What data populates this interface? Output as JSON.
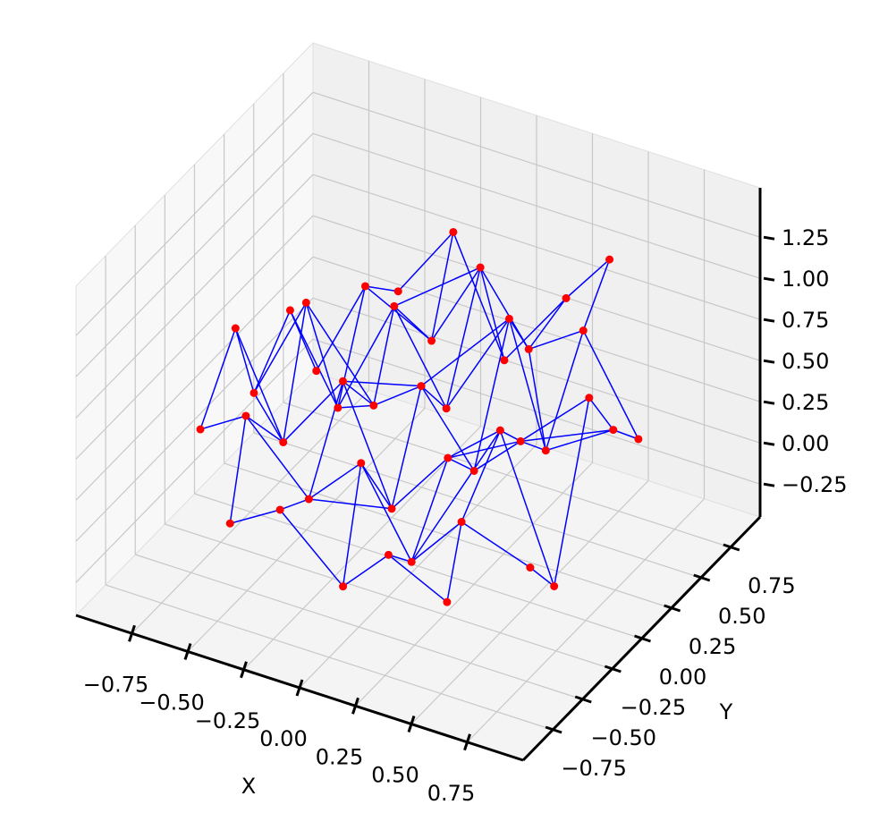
{
  "chart_data": {
    "type": "network3d",
    "xlabel": "X",
    "ylabel": "Y",
    "xlim": [
      -1.0,
      1.0
    ],
    "ylim": [
      -1.0,
      1.0
    ],
    "zlim": [
      -0.45,
      1.55
    ],
    "xticks": [
      {
        "value": -0.75,
        "label": "−0.75"
      },
      {
        "value": -0.5,
        "label": "−0.50"
      },
      {
        "value": -0.25,
        "label": "−0.25"
      },
      {
        "value": 0,
        "label": "0.00"
      },
      0.25,
      {
        "value": 0.5,
        "label": "0.50"
      },
      0.75
    ],
    "yticks": [
      {
        "value": -0.75,
        "label": "−0.75"
      },
      {
        "value": -0.5,
        "label": "−0.50"
      },
      {
        "value": -0.25,
        "label": "−0.25"
      },
      {
        "value": 0,
        "label": "0.00"
      },
      0.25,
      {
        "value": 0.5,
        "label": "0.50"
      },
      0.75
    ],
    "zticks": [
      {
        "value": -0.25,
        "label": "−0.25"
      },
      {
        "value": 0,
        "label": "0.00"
      },
      0.25,
      {
        "value": 0.5,
        "label": "0.50"
      },
      0.75,
      {
        "value": 1,
        "label": "1.00"
      },
      1.25
    ],
    "grid": true,
    "node_color": "#ff0000",
    "edge_color": "#0000ff",
    "x": [
      -0.47,
      -0.22,
      0.03,
      0.26,
      0.49,
      -0.73,
      -0.5,
      -0.25,
      0.01,
      0.22,
      0.47,
      0.74,
      -0.7,
      -0.46,
      -0.23,
      0.02,
      0.25,
      0.5,
      0.72,
      -0.75,
      -0.49,
      -0.22,
      0.03,
      0.24,
      0.48,
      0.76,
      -0.71,
      -0.47,
      -0.25,
      0.01,
      0.27,
      0.46,
      0.73,
      -0.72,
      -0.48,
      -0.21,
      0.04,
      0.23,
      0.49,
      0.71,
      -0.46,
      -0.24,
      0.02,
      0.27,
      0.48
    ],
    "y": [
      -0.7,
      -0.75,
      -0.69,
      -0.74,
      -0.68,
      -0.46,
      -0.51,
      -0.45,
      -0.5,
      -0.47,
      -0.52,
      -0.45,
      -0.22,
      -0.27,
      -0.2,
      -0.26,
      -0.22,
      -0.25,
      -0.21,
      0.03,
      -0.02,
      0.04,
      -0.03,
      0.02,
      -0.04,
      0.01,
      0.26,
      0.21,
      0.27,
      0.22,
      0.26,
      0.21,
      0.27,
      0.5,
      0.46,
      0.51,
      0.45,
      0.5,
      0.47,
      0.52,
      0.7,
      0.75,
      0.69,
      0.74,
      0.71
    ],
    "z": [
      0.12,
      0.35,
      -0.05,
      0.28,
      0.05,
      0.4,
      0.62,
      0.18,
      0.55,
      0.02,
      0.41,
      0.2,
      0.85,
      0.3,
      0.72,
      0.1,
      0.48,
      0.78,
      -0.1,
      0.25,
      0.95,
      0.4,
      0.68,
      0.22,
      0.55,
      0.9,
      0.6,
      0.15,
      0.82,
      0.35,
      0.98,
      0.3,
      0.5,
      0.05,
      0.7,
      0.45,
      1.05,
      0.6,
      0.85,
      0.25,
      0.5,
      0.92,
      0.3,
      0.75,
      1.1
    ],
    "edges": [
      [
        0,
        1
      ],
      [
        1,
        2
      ],
      [
        2,
        3
      ],
      [
        3,
        4
      ],
      [
        5,
        6
      ],
      [
        6,
        7
      ],
      [
        7,
        8
      ],
      [
        8,
        9
      ],
      [
        9,
        10
      ],
      [
        10,
        11
      ],
      [
        12,
        13
      ],
      [
        13,
        14
      ],
      [
        14,
        15
      ],
      [
        15,
        16
      ],
      [
        16,
        17
      ],
      [
        17,
        18
      ],
      [
        19,
        20
      ],
      [
        20,
        21
      ],
      [
        21,
        22
      ],
      [
        22,
        23
      ],
      [
        23,
        24
      ],
      [
        24,
        25
      ],
      [
        26,
        27
      ],
      [
        27,
        28
      ],
      [
        28,
        29
      ],
      [
        29,
        30
      ],
      [
        30,
        31
      ],
      [
        31,
        32
      ],
      [
        33,
        34
      ],
      [
        34,
        35
      ],
      [
        35,
        36
      ],
      [
        36,
        37
      ],
      [
        37,
        38
      ],
      [
        38,
        39
      ],
      [
        40,
        41
      ],
      [
        41,
        42
      ],
      [
        42,
        43
      ],
      [
        43,
        44
      ],
      [
        0,
        6
      ],
      [
        1,
        7
      ],
      [
        2,
        8
      ],
      [
        3,
        9
      ],
      [
        4,
        10
      ],
      [
        5,
        12
      ],
      [
        6,
        13
      ],
      [
        7,
        14
      ],
      [
        8,
        15
      ],
      [
        9,
        16
      ],
      [
        10,
        17
      ],
      [
        11,
        18
      ],
      [
        12,
        19
      ],
      [
        13,
        20
      ],
      [
        14,
        21
      ],
      [
        15,
        22
      ],
      [
        16,
        23
      ],
      [
        17,
        24
      ],
      [
        18,
        25
      ],
      [
        19,
        26
      ],
      [
        20,
        27
      ],
      [
        21,
        28
      ],
      [
        22,
        29
      ],
      [
        23,
        30
      ],
      [
        24,
        31
      ],
      [
        25,
        32
      ],
      [
        26,
        33
      ],
      [
        27,
        34
      ],
      [
        28,
        35
      ],
      [
        29,
        36
      ],
      [
        30,
        37
      ],
      [
        31,
        38
      ],
      [
        32,
        39
      ],
      [
        34,
        40
      ],
      [
        35,
        41
      ],
      [
        36,
        42
      ],
      [
        37,
        43
      ],
      [
        38,
        44
      ],
      [
        7,
        15
      ],
      [
        14,
        22
      ],
      [
        22,
        30
      ],
      [
        16,
        24
      ],
      [
        28,
        36
      ],
      [
        9,
        17
      ],
      [
        21,
        27
      ],
      [
        31,
        37
      ],
      [
        13,
        19
      ],
      [
        24,
        32
      ]
    ]
  }
}
